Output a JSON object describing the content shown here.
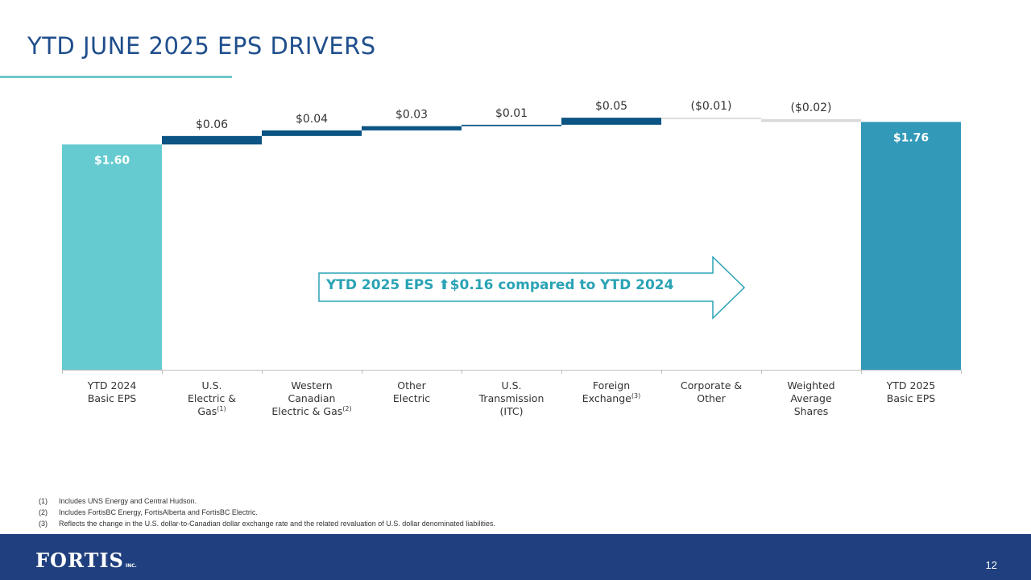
{
  "title": "YTD JUNE 2025 EPS DRIVERS",
  "page_number": "12",
  "logo": {
    "name": "FORTIS",
    "suffix": "INC."
  },
  "callout": {
    "text_before": "YTD 2025 EPS ",
    "arrow": "⬆",
    "text_after": "$0.16  compared to YTD 2024"
  },
  "footnotes": [
    {
      "num": "(1)",
      "text": "Includes UNS Energy and Central Hudson."
    },
    {
      "num": "(2)",
      "text": "Includes FortisBC Energy, FortisAlberta and FortisBC Electric."
    },
    {
      "num": "(3)",
      "text": "Reflects the change in the U.S. dollar-to-Canadian dollar exchange rate and the related revaluation of U.S. dollar denominated liabilities."
    }
  ],
  "colors": {
    "start_bar": "#66cbd0",
    "end_bar": "#3399b9",
    "increase": "#0b5484",
    "decrease": "#d9d9d9",
    "label_light": "#ffffff",
    "label_dark": "#333333",
    "axis": "#bfbfbf"
  },
  "chart_data": {
    "type": "bar",
    "subtype": "waterfall",
    "title": "",
    "xlabel": "",
    "ylabel": "",
    "ylim": [
      0,
      1.785
    ],
    "grid": false,
    "categories": [
      {
        "lines": [
          "YTD 2024",
          "Basic EPS"
        ],
        "sup": ""
      },
      {
        "lines": [
          "U.S.",
          "Electric &",
          "Gas"
        ],
        "sup": "(1)"
      },
      {
        "lines": [
          "Western",
          "Canadian",
          "Electric & Gas"
        ],
        "sup": "(2)"
      },
      {
        "lines": [
          "Other",
          "Electric"
        ],
        "sup": ""
      },
      {
        "lines": [
          "U.S.",
          "Transmission",
          "(ITC)"
        ],
        "sup": ""
      },
      {
        "lines": [
          "Foreign",
          "Exchange"
        ],
        "sup": "(3)"
      },
      {
        "lines": [
          "Corporate &",
          "Other"
        ],
        "sup": ""
      },
      {
        "lines": [
          "Weighted",
          "Average",
          "Shares"
        ],
        "sup": ""
      },
      {
        "lines": [
          "YTD 2025",
          "Basic EPS"
        ],
        "sup": ""
      }
    ],
    "values": [
      1.6,
      0.06,
      0.04,
      0.03,
      0.01,
      0.05,
      -0.01,
      -0.02,
      1.76
    ],
    "kinds": [
      "total",
      "delta",
      "delta",
      "delta",
      "delta",
      "delta",
      "delta",
      "delta",
      "total"
    ],
    "labels": [
      "$1.60",
      "$0.06",
      "$0.04",
      "$0.03",
      "$0.01",
      "$0.05",
      "($0.01)",
      "($0.02)",
      "$1.76"
    ]
  }
}
